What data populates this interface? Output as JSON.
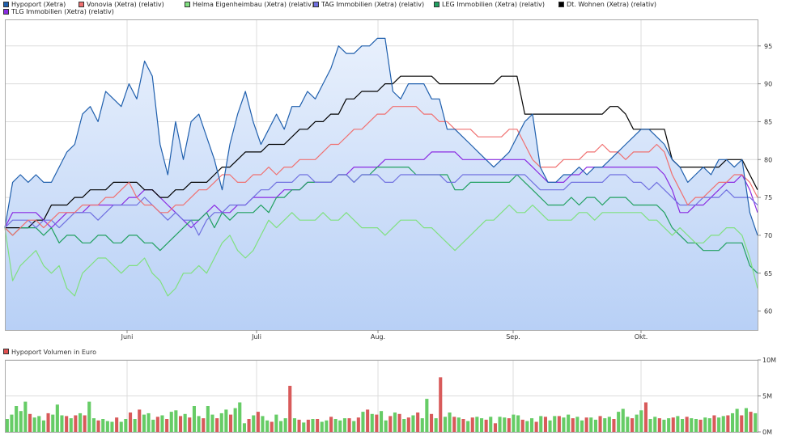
{
  "legend": {
    "items": [
      {
        "label": "Hypoport (Xetra)",
        "color": "#1f5fad"
      },
      {
        "label": "Vonovia (Xetra) (relativ)",
        "color": "#f07070"
      },
      {
        "label": "Helma Eigenheimbau (Xetra) (relativ)",
        "color": "#80e080"
      },
      {
        "label": "TAG Immobilien (Xetra) (relativ)",
        "color": "#7070e0"
      },
      {
        "label": "LEG Immobilien (Xetra) (relativ)",
        "color": "#20a060"
      },
      {
        "label": "Dt. Wohnen (Xetra) (relativ)",
        "color": "#000000"
      },
      {
        "label": "TLG Immobilien (Xetra) (relativ)",
        "color": "#8a2be2"
      }
    ]
  },
  "volume_legend": {
    "label": "Hypoport Volumen in Euro",
    "color": "#e05050"
  },
  "chart_data": [
    {
      "type": "line",
      "title": "",
      "x_tick_labels": [
        "Juni",
        "Juli",
        "Aug.",
        "Sep.",
        "Okt."
      ],
      "y_ticks": [
        60,
        65,
        70,
        75,
        80,
        85,
        90,
        95
      ],
      "ylim": [
        57.5,
        98.5
      ],
      "grid": true,
      "legend_position": "top",
      "series": [
        {
          "name": "Hypoport (Xetra)",
          "color": "#1f5fad",
          "area": true,
          "values": [
            71,
            77,
            78,
            77,
            78,
            77,
            77,
            79,
            81,
            82,
            86,
            87,
            85,
            89,
            88,
            87,
            90,
            88,
            93,
            91,
            82,
            78,
            85,
            80,
            85,
            86,
            83,
            80,
            76,
            82,
            86,
            89,
            85,
            82,
            84,
            86,
            84,
            87,
            87,
            89,
            88,
            90,
            92,
            95,
            94,
            94,
            95,
            95,
            96,
            96,
            89,
            88,
            90,
            90,
            90,
            88,
            88,
            84,
            84,
            83,
            82,
            81,
            80,
            79,
            80,
            81,
            83,
            85,
            86,
            79,
            77,
            77,
            78,
            78,
            79,
            78,
            79,
            79,
            80,
            81,
            82,
            83,
            84,
            84,
            83,
            82,
            80,
            79,
            77,
            78,
            79,
            78,
            80,
            80,
            79,
            80,
            73,
            70
          ]
        },
        {
          "name": "Vonovia (Xetra) (relativ)",
          "color": "#f07070",
          "area": false,
          "values": [
            71,
            70,
            71,
            72,
            72,
            71,
            72,
            73,
            73,
            73,
            74,
            74,
            74,
            75,
            75,
            76,
            77,
            75,
            74,
            74,
            73,
            73,
            74,
            74,
            75,
            76,
            76,
            77,
            78,
            78,
            77,
            77,
            78,
            78,
            79,
            78,
            79,
            79,
            80,
            80,
            80,
            81,
            82,
            82,
            83,
            84,
            84,
            85,
            86,
            86,
            87,
            87,
            87,
            87,
            86,
            86,
            85,
            85,
            84,
            84,
            84,
            83,
            83,
            83,
            83,
            84,
            84,
            82,
            80,
            79,
            79,
            79,
            80,
            80,
            80,
            81,
            81,
            82,
            81,
            81,
            80,
            81,
            81,
            81,
            82,
            81,
            78,
            76,
            74,
            75,
            75,
            76,
            77,
            77,
            78,
            78,
            77,
            75
          ]
        },
        {
          "name": "Helma Eigenheimbau (Xetra) (relativ)",
          "color": "#80e080",
          "area": false,
          "values": [
            71,
            64,
            66,
            67,
            68,
            66,
            65,
            66,
            63,
            62,
            65,
            66,
            67,
            67,
            66,
            65,
            66,
            66,
            67,
            65,
            64,
            62,
            63,
            65,
            65,
            66,
            65,
            67,
            69,
            70,
            68,
            67,
            68,
            70,
            72,
            71,
            72,
            73,
            72,
            72,
            72,
            73,
            72,
            72,
            73,
            72,
            71,
            71,
            71,
            70,
            71,
            72,
            72,
            72,
            71,
            71,
            70,
            69,
            68,
            69,
            70,
            71,
            72,
            72,
            73,
            74,
            73,
            73,
            74,
            73,
            72,
            72,
            72,
            72,
            73,
            73,
            72,
            73,
            73,
            73,
            73,
            73,
            73,
            72,
            72,
            71,
            70,
            71,
            70,
            69,
            69,
            70,
            70,
            71,
            71,
            70,
            67,
            63
          ]
        },
        {
          "name": "TAG Immobilien (Xetra) (relativ)",
          "color": "#7070e0",
          "area": false,
          "values": [
            71,
            72,
            72,
            72,
            71,
            72,
            72,
            71,
            72,
            73,
            73,
            73,
            72,
            73,
            74,
            74,
            74,
            74,
            75,
            74,
            73,
            72,
            73,
            72,
            72,
            70,
            72,
            73,
            73,
            74,
            74,
            74,
            75,
            76,
            76,
            77,
            77,
            77,
            78,
            78,
            77,
            77,
            77,
            78,
            78,
            77,
            78,
            78,
            78,
            77,
            77,
            78,
            78,
            78,
            78,
            78,
            78,
            77,
            77,
            78,
            78,
            78,
            78,
            78,
            78,
            78,
            78,
            78,
            77,
            76,
            76,
            76,
            76,
            77,
            77,
            77,
            77,
            77,
            78,
            78,
            78,
            77,
            77,
            76,
            77,
            76,
            75,
            74,
            74,
            74,
            75,
            75,
            75,
            76,
            75,
            75,
            75,
            74
          ]
        },
        {
          "name": "LEG Immobilien (Xetra) (relativ)",
          "color": "#20a060",
          "area": false,
          "values": [
            71,
            70,
            71,
            71,
            71,
            70,
            71,
            69,
            70,
            70,
            69,
            69,
            70,
            70,
            69,
            69,
            70,
            70,
            69,
            69,
            68,
            69,
            70,
            71,
            72,
            72,
            73,
            71,
            73,
            72,
            73,
            73,
            73,
            74,
            73,
            75,
            75,
            76,
            76,
            77,
            77,
            77,
            77,
            78,
            78,
            77,
            78,
            78,
            79,
            79,
            79,
            79,
            79,
            78,
            78,
            78,
            78,
            78,
            76,
            76,
            77,
            77,
            77,
            77,
            77,
            77,
            78,
            77,
            76,
            75,
            74,
            74,
            74,
            75,
            74,
            75,
            75,
            74,
            75,
            75,
            75,
            74,
            74,
            74,
            74,
            73,
            71,
            70,
            69,
            69,
            68,
            68,
            68,
            69,
            69,
            69,
            66,
            65
          ]
        },
        {
          "name": "Dt. Wohnen (Xetra) (relativ)",
          "color": "#000000",
          "area": false,
          "values": [
            71,
            71,
            71,
            71,
            72,
            72,
            74,
            74,
            74,
            75,
            75,
            76,
            76,
            76,
            77,
            77,
            77,
            77,
            76,
            76,
            75,
            75,
            76,
            76,
            77,
            77,
            77,
            78,
            79,
            79,
            80,
            81,
            81,
            81,
            82,
            82,
            82,
            83,
            84,
            84,
            85,
            85,
            86,
            86,
            88,
            88,
            89,
            89,
            89,
            90,
            90,
            91,
            91,
            91,
            91,
            91,
            90,
            90,
            90,
            90,
            90,
            90,
            90,
            90,
            91,
            91,
            91,
            86,
            86,
            86,
            86,
            86,
            86,
            86,
            86,
            86,
            86,
            86,
            87,
            87,
            86,
            84,
            84,
            84,
            84,
            84,
            80,
            79,
            79,
            79,
            79,
            79,
            79,
            80,
            80,
            80,
            78,
            76
          ]
        },
        {
          "name": "TLG Immobilien (Xetra) (relativ)",
          "color": "#8a2be2",
          "area": false,
          "values": [
            71,
            73,
            73,
            73,
            73,
            72,
            71,
            72,
            73,
            73,
            73,
            74,
            74,
            74,
            74,
            74,
            75,
            75,
            76,
            76,
            75,
            74,
            73,
            72,
            71,
            72,
            73,
            74,
            73,
            73,
            74,
            74,
            75,
            75,
            75,
            75,
            76,
            76,
            76,
            77,
            77,
            77,
            77,
            78,
            78,
            79,
            79,
            79,
            79,
            80,
            80,
            80,
            80,
            80,
            80,
            81,
            81,
            81,
            81,
            80,
            80,
            80,
            80,
            80,
            80,
            80,
            80,
            80,
            79,
            78,
            77,
            77,
            77,
            78,
            78,
            79,
            79,
            79,
            79,
            79,
            79,
            79,
            79,
            79,
            79,
            78,
            76,
            73,
            73,
            74,
            74,
            75,
            76,
            77,
            77,
            78,
            76,
            73
          ]
        }
      ]
    },
    {
      "type": "bar",
      "title": "Hypoport Volumen in Euro",
      "y_tick_labels": [
        "0M",
        "5M",
        "10M"
      ],
      "ylim": [
        0,
        10
      ],
      "grid": true,
      "up_color": "#66cc66",
      "down_color": "#d85a5a",
      "values": [
        1.8,
        2.4,
        3.6,
        2.9,
        4.2,
        2.5,
        2.0,
        2.2,
        1.6,
        2.6,
        2.4,
        3.8,
        2.3,
        2.2,
        1.9,
        2.3,
        2.6,
        2.3,
        4.2,
        1.9,
        1.6,
        1.8,
        1.5,
        1.4,
        2.0,
        1.4,
        1.8,
        2.7,
        1.8,
        3.1,
        2.4,
        2.6,
        1.7,
        2.1,
        2.3,
        1.8,
        2.8,
        3.0,
        2.2,
        2.5,
        2.0,
        3.6,
        2.2,
        1.9,
        3.6,
        2.4,
        1.9,
        2.6,
        3.1,
        2.4,
        3.3,
        4.1,
        1.2,
        1.8,
        2.3,
        2.8,
        2.2,
        1.6,
        1.4,
        2.4,
        1.5,
        1.9,
        6.4,
        1.9,
        1.7,
        1.3,
        1.7,
        1.8,
        1.8,
        1.4,
        1.6,
        2.1,
        1.8,
        1.6,
        1.9,
        1.9,
        1.5,
        2.0,
        2.8,
        3.1,
        2.5,
        2.4,
        2.9,
        1.6,
        2.2,
        2.7,
        2.5,
        1.8,
        2.0,
        2.3,
        2.7,
        1.9,
        4.6,
        2.5,
        1.9,
        7.6,
        2.1,
        2.7,
        2.1,
        2.0,
        1.8,
        1.5,
        2.0,
        2.1,
        1.9,
        1.7,
        2.1,
        1.2,
        2.1,
        2.0,
        1.9,
        2.4,
        2.3,
        1.7,
        1.5,
        1.9,
        1.4,
        2.2,
        2.1,
        1.6,
        2.2,
        2.2,
        2.0,
        2.4,
        1.9,
        2.1,
        1.6,
        2.0,
        2.0,
        1.7,
        2.2,
        1.9,
        2.1,
        1.8,
        2.8,
        3.2,
        2.1,
        1.9,
        2.4,
        3.0,
        4.1,
        1.8,
        2.1,
        1.9,
        1.7,
        1.9,
        2.0,
        2.2,
        1.8,
        2.1,
        1.9,
        1.8,
        1.7,
        2.0,
        1.9,
        2.3,
        2.0,
        2.2,
        2.3,
        2.6,
        3.2,
        2.3,
        3.3,
        2.8,
        2.6
      ],
      "down_days": [
        5,
        9,
        13,
        15,
        17,
        20,
        24,
        27,
        29,
        33,
        35,
        38,
        40,
        43,
        46,
        49,
        53,
        55,
        58,
        62,
        64,
        66,
        68,
        71,
        75,
        77,
        79,
        81,
        84,
        86,
        88,
        90,
        93,
        95,
        98,
        100,
        102,
        105,
        107,
        110,
        113,
        116,
        118,
        121,
        124,
        127,
        130,
        133,
        137,
        140,
        143,
        146,
        149,
        152,
        155,
        158,
        161,
        163,
        165,
        167
      ]
    }
  ]
}
